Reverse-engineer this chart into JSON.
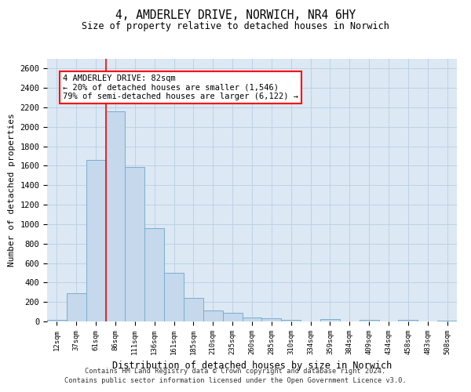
{
  "title1": "4, AMDERLEY DRIVE, NORWICH, NR4 6HY",
  "title2": "Size of property relative to detached houses in Norwich",
  "xlabel": "Distribution of detached houses by size in Norwich",
  "ylabel": "Number of detached properties",
  "categories": [
    "12sqm",
    "37sqm",
    "61sqm",
    "86sqm",
    "111sqm",
    "136sqm",
    "161sqm",
    "185sqm",
    "210sqm",
    "235sqm",
    "260sqm",
    "285sqm",
    "310sqm",
    "334sqm",
    "359sqm",
    "384sqm",
    "409sqm",
    "434sqm",
    "458sqm",
    "483sqm",
    "508sqm"
  ],
  "values": [
    20,
    290,
    1660,
    2160,
    1590,
    960,
    500,
    245,
    115,
    90,
    40,
    35,
    20,
    0,
    25,
    0,
    15,
    0,
    20,
    0,
    10
  ],
  "bar_color": "#c5d8ec",
  "bar_edge_color": "#7aaed0",
  "vline_x_index": 3,
  "vline_color": "red",
  "annotation_line1": "4 AMDERLEY DRIVE: 82sqm",
  "annotation_line2": "← 20% of detached houses are smaller (1,546)",
  "annotation_line3": "79% of semi-detached houses are larger (6,122) →",
  "annotation_box_color": "white",
  "annotation_box_edge_color": "red",
  "ylim": [
    0,
    2700
  ],
  "yticks": [
    0,
    200,
    400,
    600,
    800,
    1000,
    1200,
    1400,
    1600,
    1800,
    2000,
    2200,
    2400,
    2600
  ],
  "background_color": "white",
  "plot_bg_color": "#dce8f4",
  "grid_color": "#b8cfe0",
  "footer1": "Contains HM Land Registry data © Crown copyright and database right 2024.",
  "footer2": "Contains public sector information licensed under the Open Government Licence v3.0."
}
